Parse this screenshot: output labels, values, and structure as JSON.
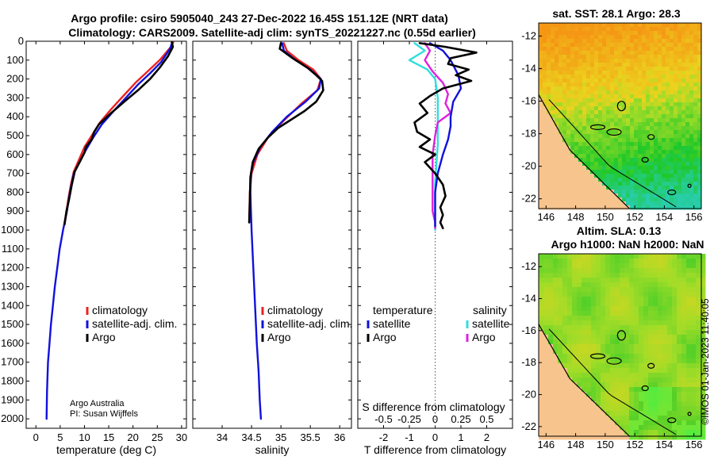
{
  "title_line1": "Argo profile: csiro 5905040_243 27-Dec-2022 16.45S 151.12E (NRT data)",
  "title_line2": "Climatology: CARS2009. Satellite-adj clim: synTS_20221227.nc (0.55d earlier)",
  "watermark": "©IMOS 01-Jan-2023 11:40:05",
  "credit": [
    "Argo Australia",
    "PI: Susan Wijffels"
  ],
  "colors": {
    "climatology": "#ee2222",
    "satellite_adj": "#1111dd",
    "argo": "#000000",
    "sat_salinity": "#33dddd",
    "argo_salinity": "#dd22dd",
    "land": "#f7c48e"
  },
  "chart_data": [
    {
      "id": "temperature",
      "type": "line",
      "xlabel": "temperature (deg C)",
      "ylabel": "",
      "xlim": [
        -2,
        31
      ],
      "ylim": [
        2050,
        0
      ],
      "xticks": [
        0,
        5,
        10,
        15,
        20,
        25,
        30
      ],
      "yticks": [
        0,
        100,
        200,
        300,
        400,
        500,
        600,
        700,
        800,
        900,
        1000,
        1100,
        1200,
        1300,
        1400,
        1500,
        1600,
        1700,
        1800,
        1900,
        2000
      ],
      "legend": [
        "climatology",
        "satellite-adj. clim.",
        "Argo"
      ],
      "series": [
        {
          "name": "climatology",
          "color": "#ee2222",
          "x": [
            28.3,
            27.8,
            25.5,
            23.0,
            20.5,
            18.0,
            15.5,
            13.2,
            11.5,
            10.0,
            9.0,
            7.8,
            7.2,
            6.7,
            6.3,
            5.9
          ],
          "y": [
            5,
            30,
            100,
            160,
            220,
            290,
            360,
            430,
            500,
            560,
            620,
            690,
            760,
            830,
            900,
            960
          ]
        },
        {
          "name": "satellite-adj. clim.",
          "color": "#1111dd",
          "x": [
            28.1,
            27.6,
            25.8,
            23.5,
            21.0,
            18.5,
            16.0,
            13.6,
            11.8,
            10.2,
            9.0,
            7.8,
            7.0,
            6.4,
            5.6,
            4.9,
            4.4,
            3.9,
            3.5,
            3.1,
            2.8,
            2.5,
            2.3,
            2.2
          ],
          "y": [
            5,
            40,
            110,
            170,
            230,
            300,
            370,
            440,
            510,
            580,
            640,
            700,
            800,
            900,
            1000,
            1100,
            1200,
            1300,
            1400,
            1500,
            1600,
            1700,
            1850,
            2000
          ]
        },
        {
          "name": "Argo",
          "color": "#000000",
          "x": [
            28.0,
            28.2,
            27.2,
            25.5,
            23.5,
            21.0,
            18.2,
            15.5,
            13.0,
            12.0,
            11.5,
            10.3,
            10.0,
            9.2,
            8.0,
            7.4,
            6.8,
            6.3,
            5.9
          ],
          "y": [
            5,
            30,
            80,
            140,
            200,
            260,
            320,
            380,
            440,
            480,
            520,
            560,
            590,
            630,
            690,
            760,
            840,
            900,
            970
          ]
        }
      ]
    },
    {
      "id": "salinity",
      "type": "line",
      "xlabel": "salinity",
      "xlim": [
        33.5,
        36.2
      ],
      "ylim": [
        2050,
        0
      ],
      "xticks": [
        34,
        34.5,
        35,
        35.5,
        36
      ],
      "legend": [
        "climatology",
        "satellite-adj. clim.",
        "Argo"
      ],
      "series": [
        {
          "name": "climatology",
          "color": "#ee2222",
          "x": [
            35.05,
            35.1,
            35.3,
            35.55,
            35.68,
            35.62,
            35.35,
            35.05,
            34.8,
            34.6,
            34.5,
            34.47,
            34.46
          ],
          "y": [
            10,
            50,
            100,
            150,
            200,
            260,
            330,
            420,
            500,
            600,
            700,
            800,
            960
          ]
        },
        {
          "name": "satellite-adj. clim.",
          "color": "#1111dd",
          "x": [
            35.02,
            35.05,
            35.25,
            35.5,
            35.68,
            35.65,
            35.42,
            35.1,
            34.85,
            34.65,
            34.53,
            34.49,
            34.48,
            34.5,
            34.53,
            34.56,
            34.59,
            34.62,
            34.64,
            34.66
          ],
          "y": [
            10,
            50,
            100,
            150,
            200,
            250,
            320,
            400,
            480,
            560,
            640,
            700,
            800,
            1000,
            1200,
            1400,
            1600,
            1750,
            1900,
            2000
          ]
        },
        {
          "name": "Argo",
          "color": "#000000",
          "x": [
            35.0,
            34.98,
            35.2,
            35.45,
            35.6,
            35.7,
            35.72,
            35.6,
            35.4,
            35.15,
            34.95,
            34.78,
            34.62,
            34.52,
            34.48,
            34.47,
            34.46
          ],
          "y": [
            10,
            40,
            90,
            140,
            180,
            210,
            260,
            320,
            370,
            420,
            460,
            510,
            570,
            640,
            720,
            850,
            960
          ]
        }
      ]
    },
    {
      "id": "difference",
      "type": "line",
      "xlabel": "T difference from climatology",
      "xlabel_top": "S difference from climatology",
      "xlim": [
        -3,
        3
      ],
      "ylim": [
        2050,
        0
      ],
      "xticks": [
        -2,
        -1,
        0,
        1,
        2
      ],
      "xticks_top_labels": [
        "-0.5",
        "-0.25",
        "0",
        "0.25",
        "0.5"
      ],
      "xticks_top_pos": [
        -2,
        -1,
        0,
        1,
        2
      ],
      "legend_title_left": "temperature",
      "legend_title_right": "salinity",
      "legend_left": [
        "satellite",
        "Argo"
      ],
      "legend_right": [
        "satellite",
        "Argo"
      ],
      "series": [
        {
          "name": "T satellite",
          "color": "#1111dd",
          "x": [
            -0.2,
            0.3,
            0.6,
            0.9,
            1.0,
            0.7,
            0.6,
            0.6,
            0.5,
            0.3,
            0.1,
            0.0,
            0.0,
            0.0
          ],
          "y": [
            10,
            50,
            100,
            180,
            250,
            320,
            400,
            450,
            520,
            600,
            700,
            800,
            900,
            980
          ]
        },
        {
          "name": "T Argo",
          "color": "#000000",
          "x": [
            -0.6,
            0.4,
            1.6,
            0.6,
            0.5,
            1.3,
            0.8,
            1.4,
            0.3,
            -0.2,
            -0.6,
            -0.3,
            -0.8,
            -0.7,
            -0.2,
            -0.6,
            0.0,
            -0.4,
            0.0,
            0.3,
            0.4,
            0.2,
            0.3,
            0.2,
            0.3
          ],
          "y": [
            10,
            30,
            60,
            90,
            120,
            150,
            180,
            210,
            250,
            290,
            330,
            380,
            430,
            480,
            520,
            560,
            600,
            640,
            700,
            760,
            820,
            880,
            920,
            960,
            990
          ]
        },
        {
          "name": "S satellite",
          "color": "#33dddd",
          "x": [
            -0.8,
            -0.4,
            -1.0,
            -0.3,
            0.0,
            0.1,
            0.1,
            0.1,
            0.1,
            0.05,
            0.0,
            0.0,
            0.0,
            0.0
          ],
          "y": [
            10,
            50,
            100,
            150,
            200,
            300,
            400,
            450,
            550,
            650,
            750,
            850,
            950,
            1000
          ]
        },
        {
          "name": "S Argo",
          "color": "#dd22dd",
          "x": [
            -0.4,
            -0.2,
            -0.4,
            -0.1,
            0.3,
            0.5,
            0.4,
            0.6,
            0.1,
            0.0,
            -0.1,
            -0.1,
            -0.1,
            -0.1,
            0.0,
            0.0
          ],
          "y": [
            10,
            50,
            100,
            160,
            220,
            280,
            330,
            380,
            430,
            500,
            600,
            700,
            800,
            900,
            960,
            990
          ]
        }
      ]
    },
    {
      "id": "sst-map",
      "type": "heatmap",
      "title": "sat. SST: 28.1 Argo: 28.3",
      "xticks": [
        146,
        148,
        150,
        152,
        154,
        156
      ],
      "yticks": [
        -12,
        -14,
        -16,
        -18,
        -20,
        -22
      ],
      "xlim": [
        145.5,
        156.5
      ],
      "ylim": [
        -22.6,
        -11.2
      ],
      "argo_position": [
        151.12,
        -16.45
      ]
    },
    {
      "id": "sla-map",
      "type": "heatmap",
      "title_line1": "Altim. SLA: 0.13",
      "title_line2": "Argo h1000: NaN h2000: NaN",
      "xticks": [
        146,
        148,
        150,
        152,
        154,
        156
      ],
      "yticks": [
        -12,
        -14,
        -16,
        -18,
        -20,
        -22
      ],
      "xlim": [
        145.5,
        156.5
      ],
      "ylim": [
        -22.6,
        -11.2
      ],
      "argo_position": [
        151.12,
        -16.45
      ]
    }
  ]
}
